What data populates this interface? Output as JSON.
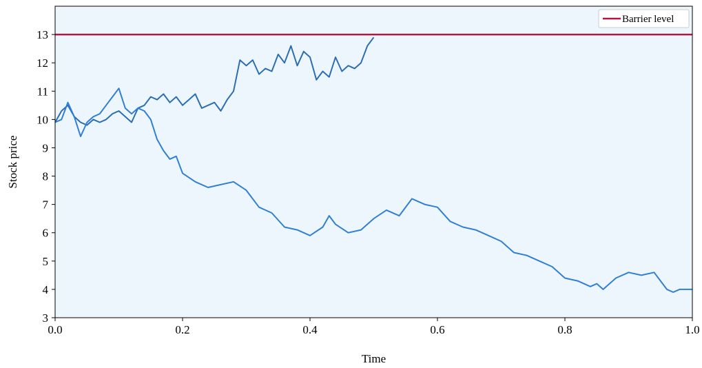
{
  "chart_data": {
    "type": "line",
    "xlabel": "Time",
    "ylabel": "Stock price",
    "xlim": [
      0.0,
      1.0
    ],
    "ylim": [
      3,
      14
    ],
    "xticks": [
      0.0,
      0.2,
      0.4,
      0.6,
      0.8,
      1.0
    ],
    "xtick_labels": [
      "0.0",
      "0.2",
      "0.4",
      "0.6",
      "0.8",
      "1.0"
    ],
    "yticks": [
      3,
      4,
      5,
      6,
      7,
      8,
      9,
      10,
      11,
      12,
      13
    ],
    "ytick_labels": [
      "3",
      "4",
      "5",
      "6",
      "7",
      "8",
      "9",
      "10",
      "11",
      "12",
      "13"
    ],
    "grid": false,
    "legend_position": "top-right",
    "plot_background": "#eef6fd",
    "barrier": {
      "name": "Barrier level",
      "value": 13,
      "color": "#b3173f"
    },
    "series": [
      {
        "color": "#2a6db5",
        "x": [
          0.0,
          0.01,
          0.02,
          0.03,
          0.04,
          0.05,
          0.06,
          0.07,
          0.08,
          0.09,
          0.1,
          0.11,
          0.12,
          0.13,
          0.14,
          0.15,
          0.16,
          0.17,
          0.18,
          0.19,
          0.2,
          0.21,
          0.22,
          0.23,
          0.24,
          0.25,
          0.26,
          0.27,
          0.28,
          0.29,
          0.3,
          0.31,
          0.32,
          0.33,
          0.34,
          0.35,
          0.36,
          0.37,
          0.38,
          0.39,
          0.4,
          0.41,
          0.42,
          0.43,
          0.44,
          0.45,
          0.46,
          0.47,
          0.48,
          0.49,
          0.5
        ],
        "y": [
          9.9,
          10.3,
          10.5,
          10.1,
          9.9,
          9.8,
          10.0,
          9.9,
          10.0,
          10.2,
          10.3,
          10.1,
          9.9,
          10.4,
          10.5,
          10.8,
          10.7,
          10.9,
          10.6,
          10.8,
          10.5,
          10.7,
          10.9,
          10.4,
          10.5,
          10.6,
          10.3,
          10.7,
          11.0,
          12.1,
          11.9,
          12.1,
          11.6,
          11.8,
          11.7,
          12.3,
          12.0,
          12.6,
          11.9,
          12.4,
          12.2,
          11.4,
          11.7,
          11.5,
          12.2,
          11.7,
          11.9,
          11.8,
          12.0,
          12.6,
          12.9
        ]
      },
      {
        "color": "#2f7fd6",
        "x": [
          0.0,
          0.01,
          0.02,
          0.03,
          0.04,
          0.05,
          0.06,
          0.07,
          0.08,
          0.09,
          0.1,
          0.11,
          0.12,
          0.13,
          0.14,
          0.15,
          0.16,
          0.17,
          0.18,
          0.19,
          0.2,
          0.22,
          0.24,
          0.26,
          0.28,
          0.3,
          0.32,
          0.34,
          0.36,
          0.38,
          0.4,
          0.42,
          0.43,
          0.44,
          0.46,
          0.48,
          0.5,
          0.52,
          0.54,
          0.56,
          0.58,
          0.6,
          0.62,
          0.64,
          0.66,
          0.68,
          0.7,
          0.72,
          0.74,
          0.76,
          0.78,
          0.8,
          0.82,
          0.84,
          0.85,
          0.86,
          0.88,
          0.9,
          0.92,
          0.94,
          0.95,
          0.96,
          0.97,
          0.98,
          1.0
        ],
        "y": [
          9.9,
          10.0,
          10.6,
          10.1,
          9.4,
          9.9,
          10.1,
          10.2,
          10.5,
          10.8,
          11.1,
          10.4,
          10.2,
          10.4,
          10.3,
          10.0,
          9.3,
          8.9,
          8.6,
          8.7,
          8.1,
          7.8,
          7.6,
          7.7,
          7.8,
          7.5,
          6.9,
          6.7,
          6.2,
          6.1,
          5.9,
          6.2,
          6.6,
          6.3,
          6.0,
          6.1,
          6.5,
          6.8,
          6.6,
          7.2,
          7.0,
          6.9,
          6.4,
          6.2,
          6.1,
          5.9,
          5.7,
          5.3,
          5.2,
          5.0,
          4.8,
          4.4,
          4.3,
          4.1,
          4.2,
          4.0,
          4.4,
          4.6,
          4.5,
          4.6,
          4.3,
          4.0,
          3.9,
          4.0,
          4.0
        ]
      }
    ]
  }
}
